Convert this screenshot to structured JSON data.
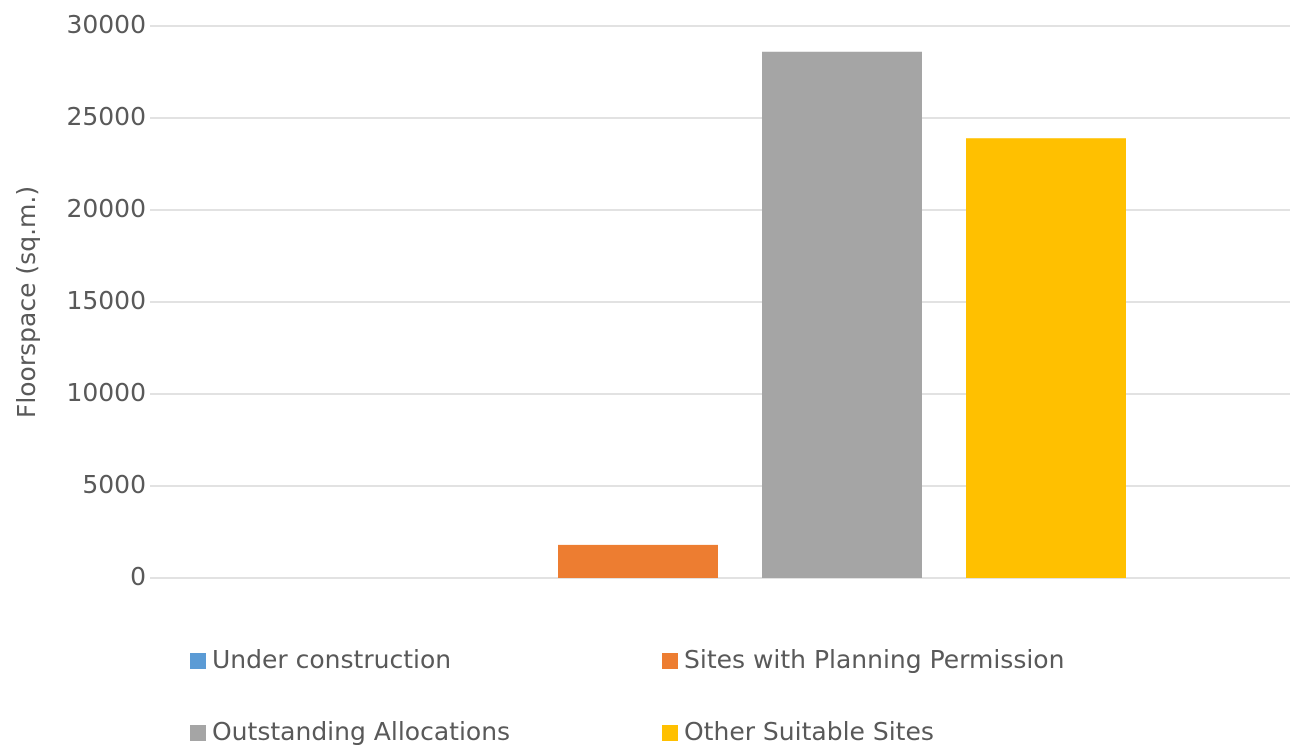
{
  "chart_data": {
    "type": "bar",
    "y_label": "Floorspace (sq.m.)",
    "categories": [
      null
    ],
    "series": [
      {
        "name": "Under construction",
        "color": "#5b9bd5",
        "values": [
          0
        ]
      },
      {
        "name": "Sites with Planning Permission",
        "color": "#ed7d31",
        "values": [
          1800
        ]
      },
      {
        "name": "Outstanding Allocations",
        "color": "#a5a5a5",
        "values": [
          28600
        ]
      },
      {
        "name": "Other Suitable Sites",
        "color": "#ffc000",
        "values": [
          23900
        ]
      }
    ],
    "ylim": [
      0,
      30000
    ],
    "yticks": [
      0,
      5000,
      10000,
      15000,
      20000,
      25000,
      30000
    ],
    "grid": true,
    "legend": "bottom"
  }
}
